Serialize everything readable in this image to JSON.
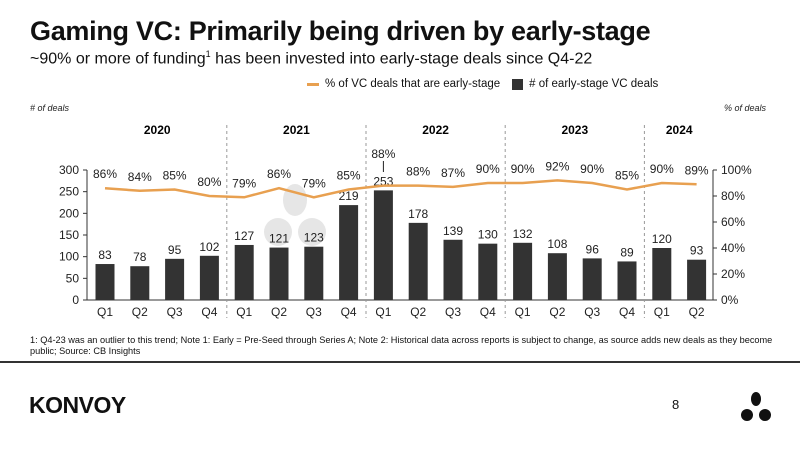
{
  "title": "Gaming VC: Primarily being driven by early-stage",
  "subtitle": "~90% or more of funding",
  "subtitle_sup": "1",
  "subtitle_rest": " has been invested into early-stage deals since Q4-22",
  "footnote": "1: Q4-23 was an outlier to this trend; Note 1: Early = Pre-Seed through Series A; Note 2: Historical data across reports is subject to change, as source adds new deals as they become public; Source: CB Insights",
  "logo_text": "KONVOY",
  "page_number": "8",
  "colors": {
    "bar": "#333333",
    "line": "#e8a050",
    "watermark": "#e6e6e6"
  },
  "chart_data": {
    "type": "bar+line",
    "left_axis_label": "# of deals",
    "right_axis_label": "% of deals",
    "left_ylim": [
      0,
      300
    ],
    "left_ticks": [
      "0",
      "50",
      "100",
      "150",
      "200",
      "250",
      "300"
    ],
    "right_ylim": [
      0,
      100
    ],
    "right_ticks": [
      "0%",
      "20%",
      "40%",
      "60%",
      "80%",
      "100%"
    ],
    "years": [
      {
        "label": "2020",
        "count": 4
      },
      {
        "label": "2021",
        "count": 4
      },
      {
        "label": "2022",
        "count": 4
      },
      {
        "label": "2023",
        "count": 4
      },
      {
        "label": "2024",
        "count": 2
      }
    ],
    "categories": [
      "Q1",
      "Q2",
      "Q3",
      "Q4",
      "Q1",
      "Q2",
      "Q3",
      "Q4",
      "Q1",
      "Q2",
      "Q3",
      "Q4",
      "Q1",
      "Q2",
      "Q3",
      "Q4",
      "Q1",
      "Q2"
    ],
    "series": [
      {
        "name": "# of early-stage VC deals",
        "type": "bar",
        "values": [
          83,
          78,
          95,
          102,
          127,
          121,
          123,
          219,
          253,
          178,
          139,
          130,
          132,
          108,
          96,
          89,
          120,
          93
        ]
      },
      {
        "name": "% of VC deals that are early-stage",
        "type": "line",
        "values": [
          86,
          84,
          85,
          80,
          79,
          86,
          79,
          85,
          88,
          88,
          87,
          90,
          90,
          92,
          90,
          85,
          90,
          89
        ]
      }
    ],
    "legend_position": "top-right",
    "grid": false
  }
}
